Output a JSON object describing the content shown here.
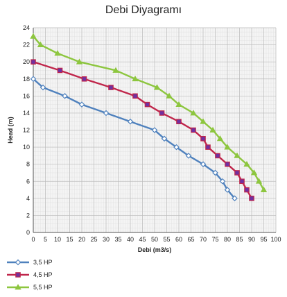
{
  "chart_data": {
    "type": "line",
    "title": "Debi Diyagramı",
    "xlabel": "Debi (m3/s)",
    "ylabel": "Head (m)",
    "xlim": [
      0,
      100
    ],
    "ylim": [
      0,
      24
    ],
    "x_ticks": [
      0,
      5,
      10,
      15,
      20,
      25,
      30,
      35,
      40,
      45,
      50,
      55,
      60,
      65,
      70,
      75,
      80,
      85,
      90,
      95,
      100
    ],
    "y_ticks": [
      0,
      2,
      4,
      6,
      8,
      10,
      12,
      14,
      16,
      18,
      20,
      22,
      24
    ],
    "grid": true,
    "legend_position": "bottom-left",
    "series": [
      {
        "name": "3,5 HP",
        "color": "#4f81bd",
        "marker": "diamond",
        "points": [
          [
            0,
            18
          ],
          [
            4,
            17
          ],
          [
            13,
            16
          ],
          [
            20,
            15
          ],
          [
            30,
            14
          ],
          [
            40,
            13
          ],
          [
            50,
            12
          ],
          [
            54,
            11
          ],
          [
            59,
            10
          ],
          [
            64,
            9
          ],
          [
            70,
            8
          ],
          [
            75,
            7
          ],
          [
            78,
            6
          ],
          [
            80,
            5
          ],
          [
            83,
            4
          ]
        ]
      },
      {
        "name": "4,5 HP",
        "color": "#c0264b",
        "marker": "square",
        "points": [
          [
            0,
            20
          ],
          [
            11,
            19
          ],
          [
            21,
            18
          ],
          [
            32,
            17
          ],
          [
            42,
            16
          ],
          [
            47,
            15
          ],
          [
            53,
            14
          ],
          [
            60,
            13
          ],
          [
            66,
            12
          ],
          [
            70,
            11
          ],
          [
            72,
            10
          ],
          [
            76,
            9
          ],
          [
            80,
            8
          ],
          [
            84,
            7
          ],
          [
            86,
            6
          ],
          [
            88,
            5
          ],
          [
            90,
            4
          ]
        ]
      },
      {
        "name": "5,5 HP",
        "color": "#8dc63f",
        "marker": "triangle",
        "points": [
          [
            0,
            23
          ],
          [
            3,
            22
          ],
          [
            10,
            21
          ],
          [
            19,
            20
          ],
          [
            34,
            19
          ],
          [
            42,
            18
          ],
          [
            51,
            17
          ],
          [
            56,
            16
          ],
          [
            60,
            15
          ],
          [
            66,
            14
          ],
          [
            70,
            13
          ],
          [
            74,
            12
          ],
          [
            77,
            11
          ],
          [
            80,
            10
          ],
          [
            84,
            9
          ],
          [
            88,
            8
          ],
          [
            91,
            7
          ],
          [
            93,
            6
          ],
          [
            95,
            5
          ]
        ]
      }
    ]
  }
}
